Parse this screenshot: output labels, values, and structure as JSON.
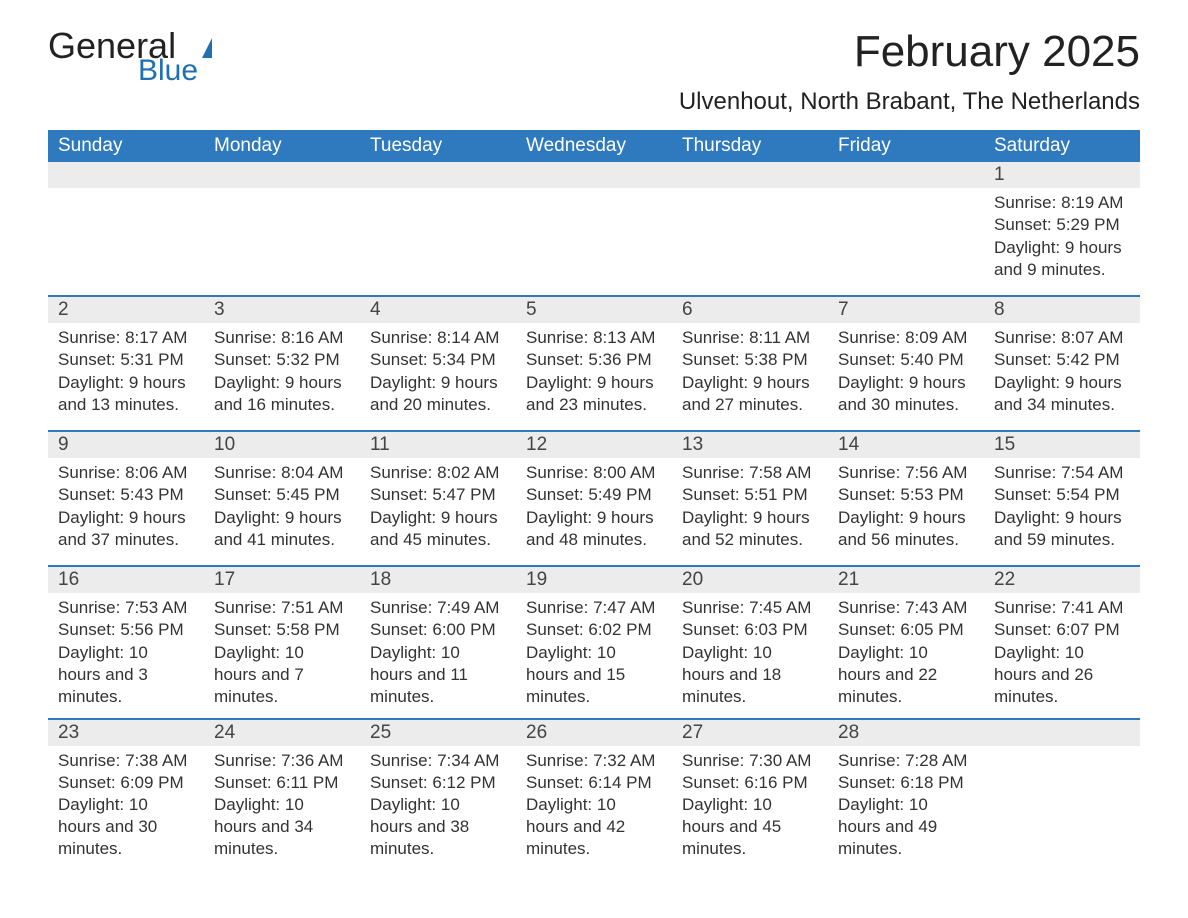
{
  "logo": {
    "word1": "General",
    "word2": "Blue",
    "flag_color": "#1f6fb2"
  },
  "title": "February 2025",
  "location": "Ulvenhout, North Brabant, The Netherlands",
  "colors": {
    "header_bg": "#2f79be",
    "header_text": "#ffffff",
    "daynum_bg": "#ececec",
    "rule": "#2f79be",
    "text": "#333333",
    "logo_blue": "#1f6fb2"
  },
  "typography": {
    "title_fontsize": 44,
    "location_fontsize": 24,
    "header_fontsize": 19,
    "body_fontsize": 17
  },
  "weekdays": [
    "Sunday",
    "Monday",
    "Tuesday",
    "Wednesday",
    "Thursday",
    "Friday",
    "Saturday"
  ],
  "weeks": [
    [
      null,
      null,
      null,
      null,
      null,
      null,
      {
        "n": "1",
        "sunrise": "8:19 AM",
        "sunset": "5:29 PM",
        "daylight": "9 hours and 9 minutes."
      }
    ],
    [
      {
        "n": "2",
        "sunrise": "8:17 AM",
        "sunset": "5:31 PM",
        "daylight": "9 hours and 13 minutes."
      },
      {
        "n": "3",
        "sunrise": "8:16 AM",
        "sunset": "5:32 PM",
        "daylight": "9 hours and 16 minutes."
      },
      {
        "n": "4",
        "sunrise": "8:14 AM",
        "sunset": "5:34 PM",
        "daylight": "9 hours and 20 minutes."
      },
      {
        "n": "5",
        "sunrise": "8:13 AM",
        "sunset": "5:36 PM",
        "daylight": "9 hours and 23 minutes."
      },
      {
        "n": "6",
        "sunrise": "8:11 AM",
        "sunset": "5:38 PM",
        "daylight": "9 hours and 27 minutes."
      },
      {
        "n": "7",
        "sunrise": "8:09 AM",
        "sunset": "5:40 PM",
        "daylight": "9 hours and 30 minutes."
      },
      {
        "n": "8",
        "sunrise": "8:07 AM",
        "sunset": "5:42 PM",
        "daylight": "9 hours and 34 minutes."
      }
    ],
    [
      {
        "n": "9",
        "sunrise": "8:06 AM",
        "sunset": "5:43 PM",
        "daylight": "9 hours and 37 minutes."
      },
      {
        "n": "10",
        "sunrise": "8:04 AM",
        "sunset": "5:45 PM",
        "daylight": "9 hours and 41 minutes."
      },
      {
        "n": "11",
        "sunrise": "8:02 AM",
        "sunset": "5:47 PM",
        "daylight": "9 hours and 45 minutes."
      },
      {
        "n": "12",
        "sunrise": "8:00 AM",
        "sunset": "5:49 PM",
        "daylight": "9 hours and 48 minutes."
      },
      {
        "n": "13",
        "sunrise": "7:58 AM",
        "sunset": "5:51 PM",
        "daylight": "9 hours and 52 minutes."
      },
      {
        "n": "14",
        "sunrise": "7:56 AM",
        "sunset": "5:53 PM",
        "daylight": "9 hours and 56 minutes."
      },
      {
        "n": "15",
        "sunrise": "7:54 AM",
        "sunset": "5:54 PM",
        "daylight": "9 hours and 59 minutes."
      }
    ],
    [
      {
        "n": "16",
        "sunrise": "7:53 AM",
        "sunset": "5:56 PM",
        "daylight": "10 hours and 3 minutes."
      },
      {
        "n": "17",
        "sunrise": "7:51 AM",
        "sunset": "5:58 PM",
        "daylight": "10 hours and 7 minutes."
      },
      {
        "n": "18",
        "sunrise": "7:49 AM",
        "sunset": "6:00 PM",
        "daylight": "10 hours and 11 minutes."
      },
      {
        "n": "19",
        "sunrise": "7:47 AM",
        "sunset": "6:02 PM",
        "daylight": "10 hours and 15 minutes."
      },
      {
        "n": "20",
        "sunrise": "7:45 AM",
        "sunset": "6:03 PM",
        "daylight": "10 hours and 18 minutes."
      },
      {
        "n": "21",
        "sunrise": "7:43 AM",
        "sunset": "6:05 PM",
        "daylight": "10 hours and 22 minutes."
      },
      {
        "n": "22",
        "sunrise": "7:41 AM",
        "sunset": "6:07 PM",
        "daylight": "10 hours and 26 minutes."
      }
    ],
    [
      {
        "n": "23",
        "sunrise": "7:38 AM",
        "sunset": "6:09 PM",
        "daylight": "10 hours and 30 minutes."
      },
      {
        "n": "24",
        "sunrise": "7:36 AM",
        "sunset": "6:11 PM",
        "daylight": "10 hours and 34 minutes."
      },
      {
        "n": "25",
        "sunrise": "7:34 AM",
        "sunset": "6:12 PM",
        "daylight": "10 hours and 38 minutes."
      },
      {
        "n": "26",
        "sunrise": "7:32 AM",
        "sunset": "6:14 PM",
        "daylight": "10 hours and 42 minutes."
      },
      {
        "n": "27",
        "sunrise": "7:30 AM",
        "sunset": "6:16 PM",
        "daylight": "10 hours and 45 minutes."
      },
      {
        "n": "28",
        "sunrise": "7:28 AM",
        "sunset": "6:18 PM",
        "daylight": "10 hours and 49 minutes."
      },
      null
    ]
  ],
  "labels": {
    "sunrise": "Sunrise: ",
    "sunset": "Sunset: ",
    "daylight": "Daylight: "
  }
}
